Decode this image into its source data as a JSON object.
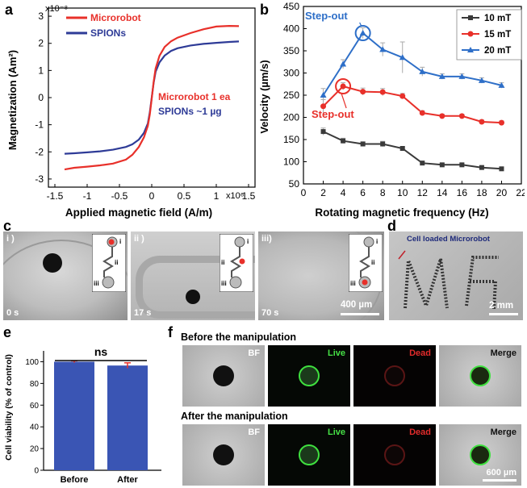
{
  "panels": {
    "a": "a",
    "b": "b",
    "c": "c",
    "d": "d",
    "e": "e",
    "f": "f"
  },
  "chart_a": {
    "type": "line",
    "y_multiplier": "x10⁻⁸",
    "x_multiplier": "x10⁶",
    "ylabel": "Magnetization (Am²)",
    "xlabel": "Applied magnetic field (A/m)",
    "xlim": [
      -1.6,
      1.6
    ],
    "ylim": [
      -3.3,
      3.3
    ],
    "xticks": [
      "-1.5",
      "-1",
      "-0.5",
      "0",
      "0.5",
      "1",
      "1.5"
    ],
    "xtick_values": [
      -1.5,
      -1,
      -0.5,
      0,
      0.5,
      1,
      1.5
    ],
    "yticks": [
      "-3",
      "-2",
      "-1",
      "0",
      "1",
      "2",
      "3"
    ],
    "ytick_values": [
      -3,
      -2,
      -1,
      0,
      1,
      2,
      3
    ],
    "legend": [
      "Microrobot",
      "SPIONs"
    ],
    "annotations": [
      "Microrobot 1 ea",
      "SPIONs ~1 µg"
    ],
    "series": [
      {
        "name": "Microrobot",
        "color": "#e8302a",
        "x": [
          -1.35,
          -1.2,
          -1.0,
          -0.8,
          -0.6,
          -0.4,
          -0.3,
          -0.2,
          -0.12,
          -0.06,
          -0.03,
          0,
          0.03,
          0.06,
          0.12,
          0.2,
          0.3,
          0.4,
          0.6,
          0.8,
          1.0,
          1.2,
          1.35
        ],
        "y": [
          -2.65,
          -2.62,
          -2.58,
          -2.5,
          -2.4,
          -2.25,
          -2.1,
          -1.85,
          -1.5,
          -1.05,
          -0.6,
          0,
          0.6,
          1.05,
          1.5,
          1.85,
          2.1,
          2.25,
          2.4,
          2.5,
          2.58,
          2.62,
          2.65
        ]
      },
      {
        "name": "SPIONs",
        "color": "#2e3b97",
        "x": [
          -1.35,
          -1.2,
          -1.0,
          -0.8,
          -0.6,
          -0.4,
          -0.3,
          -0.2,
          -0.12,
          -0.06,
          -0.03,
          0,
          0.03,
          0.06,
          0.12,
          0.2,
          0.3,
          0.4,
          0.6,
          0.8,
          1.0,
          1.2,
          1.35
        ],
        "y": [
          -2.07,
          -2.05,
          -2.02,
          -1.98,
          -1.92,
          -1.82,
          -1.72,
          -1.55,
          -1.3,
          -0.95,
          -0.55,
          0,
          0.55,
          0.95,
          1.3,
          1.55,
          1.72,
          1.82,
          1.92,
          1.98,
          2.02,
          2.05,
          2.07
        ]
      }
    ]
  },
  "chart_b": {
    "type": "line",
    "ylabel": "Velocity (µm/s)",
    "xlabel": "Rotating magnetic frequency (Hz)",
    "xlim": [
      0,
      22
    ],
    "ylim": [
      50,
      450
    ],
    "xticks": [
      "0",
      "2",
      "4",
      "6",
      "8",
      "10",
      "12",
      "14",
      "16",
      "18",
      "20",
      "22"
    ],
    "xtick_values": [
      0,
      2,
      4,
      6,
      8,
      10,
      12,
      14,
      16,
      18,
      20,
      22
    ],
    "yticks": [
      "50",
      "100",
      "150",
      "200",
      "250",
      "300",
      "350",
      "400",
      "450"
    ],
    "ytick_values": [
      50,
      100,
      150,
      200,
      250,
      300,
      350,
      400,
      450
    ],
    "annotations": [
      "Step-out",
      "Step-out"
    ],
    "x": [
      2,
      4,
      6,
      8,
      10,
      12,
      14,
      16,
      18,
      20
    ],
    "series": [
      {
        "name": "10 mT",
        "color": "#3a3a3a",
        "marker": "square",
        "values": [
          168,
          147,
          140,
          140,
          130,
          97,
          93,
          93,
          87,
          84
        ],
        "err": [
          8,
          6,
          5,
          6,
          4,
          4,
          3,
          3,
          3,
          3
        ]
      },
      {
        "name": "15 mT",
        "color": "#e8302a",
        "marker": "circle",
        "values": [
          225,
          270,
          258,
          257,
          248,
          210,
          203,
          203,
          190,
          188
        ],
        "err": [
          15,
          8,
          8,
          8,
          6,
          5,
          4,
          4,
          4,
          4
        ]
      },
      {
        "name": "20 mT",
        "color": "#2e6fc8",
        "marker": "triangle",
        "values": [
          250,
          320,
          390,
          353,
          335,
          303,
          292,
          292,
          283,
          272
        ],
        "err": [
          15,
          10,
          12,
          15,
          35,
          10,
          6,
          6,
          6,
          6
        ]
      }
    ],
    "stepout_points": [
      {
        "x": 4,
        "y": 270,
        "color": "#e8302a"
      },
      {
        "x": 6,
        "y": 390,
        "color": "#2e6fc8"
      }
    ]
  },
  "panel_c": {
    "frames": [
      {
        "label": "i )",
        "time": "0 s",
        "step": "i"
      },
      {
        "label": "ii )",
        "time": "17 s",
        "step": "ii"
      },
      {
        "label": "iii)",
        "time": "70 s",
        "step": "iii"
      }
    ],
    "scale": "400 µm",
    "inset_labels": [
      "i",
      "ii",
      "iii"
    ]
  },
  "panel_d": {
    "caption": "Cell loaded Microrobot",
    "scale": "2 mm"
  },
  "chart_e": {
    "type": "bar",
    "categories": [
      "Before",
      "After"
    ],
    "values": [
      100,
      96.5
    ],
    "err": [
      0.8,
      2.5
    ],
    "ylabel": "Cell viability (% of control)",
    "ylim": [
      0,
      110
    ],
    "yticks": [
      "0",
      "20",
      "40",
      "60",
      "80",
      "100"
    ],
    "ytick_values": [
      0,
      20,
      40,
      60,
      80,
      100
    ],
    "significance": "ns",
    "color": "#3a55b4"
  },
  "panel_f": {
    "rows": [
      {
        "title": "Before the manipulation"
      },
      {
        "title": "After the manipulation"
      }
    ],
    "channels": [
      "BF",
      "Live",
      "Dead",
      "Merge"
    ],
    "scale": "600 µm"
  }
}
